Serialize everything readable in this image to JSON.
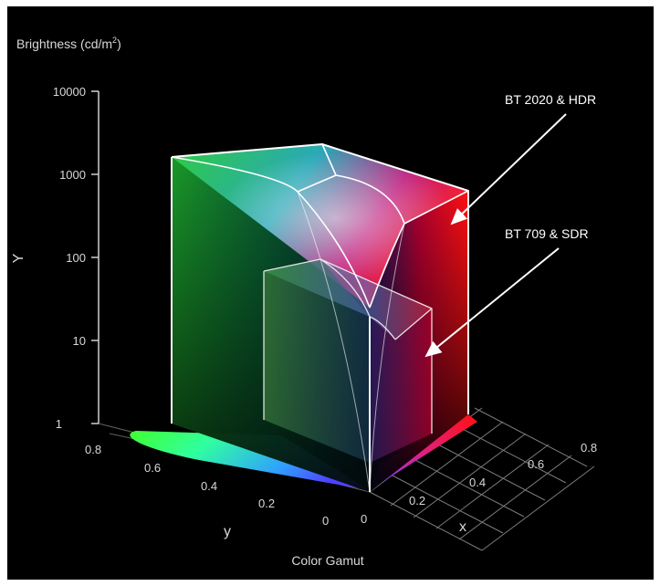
{
  "brightness_axis": {
    "title_main": "Brightness (cd/m",
    "title_sup": "2",
    "title_end": ")",
    "letter": "Y",
    "ticks": [
      "10000",
      "1000",
      "100",
      "10",
      "1"
    ]
  },
  "y_axis": {
    "letter": "y",
    "ticks": [
      "0.8",
      "0.6",
      "0.4",
      "0.2",
      "0"
    ]
  },
  "x_axis": {
    "letter": "x",
    "ticks": [
      "0",
      "0.2",
      "0.4",
      "0.6",
      "0.8"
    ]
  },
  "gamut_label": "Color Gamut",
  "callouts": {
    "large_volume": "BT 2020 & HDR",
    "small_volume": "BT 709 & SDR"
  },
  "colors": {
    "background": "#000000",
    "edge_lines": "#ffffff",
    "arrow": "#ffffff",
    "green_primary": "#00ff00",
    "red_primary": "#ff0000",
    "blue_primary": "#6a4bff"
  }
}
